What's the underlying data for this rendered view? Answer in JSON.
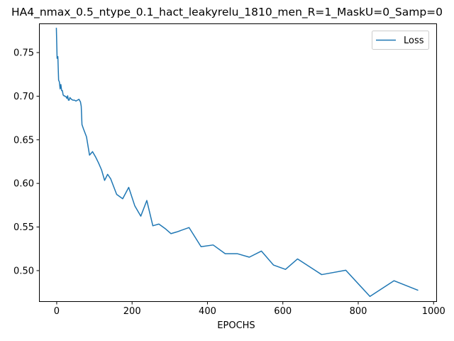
{
  "chart_data": {
    "type": "line",
    "title": "HA4_nmax_0.5_ntype_0.1_hact_leakyrelu_1810_men_R=1_MaskU=0_Samp=0",
    "xlabel": "EPOCHS",
    "ylabel": "",
    "xlim": [
      -46,
      1008
    ],
    "ylim": [
      0.4645,
      0.783
    ],
    "xticks": [
      0,
      200,
      400,
      600,
      800,
      1000
    ],
    "yticks": [
      0.5,
      0.55,
      0.6,
      0.65,
      0.7,
      0.75
    ],
    "xtick_labels": [
      "0",
      "200",
      "400",
      "600",
      "800",
      "1000"
    ],
    "ytick_labels": [
      "0.50",
      "0.55",
      "0.60",
      "0.65",
      "0.70",
      "0.75"
    ],
    "grid": false,
    "legend_position": "top-right",
    "series": [
      {
        "name": "Loss",
        "color": "#1f77b4",
        "x": [
          0,
          2,
          4,
          6,
          8,
          10,
          12,
          14,
          16,
          18,
          20,
          22,
          24,
          26,
          28,
          30,
          32,
          34,
          36,
          40,
          44,
          48,
          52,
          56,
          60,
          64,
          66,
          68,
          72,
          80,
          88,
          96,
          104,
          112,
          120,
          128,
          136,
          144,
          160,
          176,
          192,
          208,
          224,
          240,
          256,
          272,
          288,
          304,
          320,
          352,
          384,
          416,
          448,
          480,
          512,
          544,
          576,
          608,
          640,
          704,
          768,
          832,
          896,
          960
        ],
        "y": [
          0.778,
          0.743,
          0.745,
          0.718,
          0.716,
          0.708,
          0.713,
          0.706,
          0.706,
          0.701,
          0.7,
          0.7,
          0.699,
          0.699,
          0.697,
          0.7,
          0.695,
          0.695,
          0.698,
          0.696,
          0.695,
          0.695,
          0.694,
          0.695,
          0.696,
          0.693,
          0.688,
          0.667,
          0.662,
          0.653,
          0.632,
          0.636,
          0.63,
          0.623,
          0.615,
          0.603,
          0.61,
          0.605,
          0.587,
          0.582,
          0.595,
          0.574,
          0.562,
          0.58,
          0.551,
          0.553,
          0.548,
          0.542,
          0.544,
          0.549,
          0.527,
          0.529,
          0.519,
          0.519,
          0.515,
          0.522,
          0.506,
          0.501,
          0.513,
          0.495,
          0.5,
          0.47,
          0.488,
          0.477
        ]
      }
    ]
  }
}
